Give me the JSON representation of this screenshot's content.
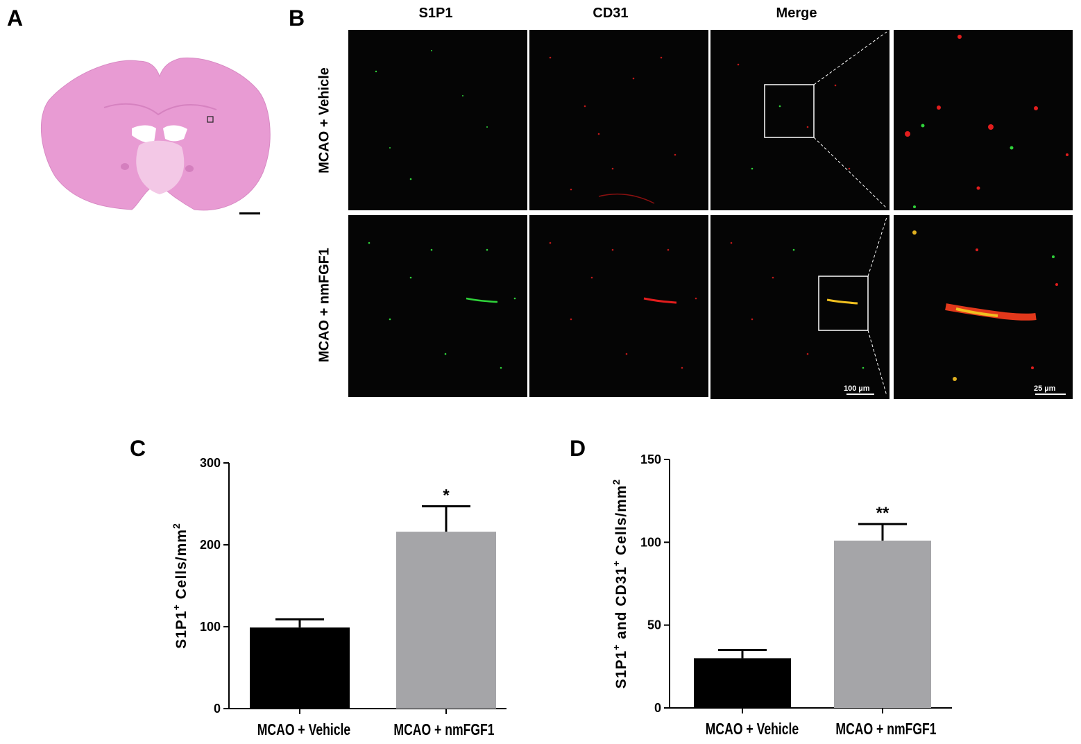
{
  "panels": {
    "a": {
      "letter": "A"
    },
    "b": {
      "letter": "B",
      "columns": [
        "S1P1",
        "CD31",
        "Merge"
      ],
      "rows": [
        "MCAO + Vehicle",
        "MCAO + nmFGF1"
      ],
      "scale_main": "100 µm",
      "scale_zoom": "25 µm"
    },
    "c": {
      "letter": "C"
    },
    "d": {
      "letter": "D"
    }
  },
  "colors": {
    "vehicle_bar": "#000000",
    "nmfgf1_bar": "#a5a5a8",
    "he_stain": "#e79ad2",
    "s1p1_signal": "#2fd33a",
    "cd31_signal": "#e21d1d",
    "merge_signal": "#f0c020"
  },
  "chart_data": [
    {
      "type": "bar",
      "panel": "C",
      "categories": [
        "MCAO + Vehicle",
        "MCAO + nmFGF1"
      ],
      "values": [
        99,
        216
      ],
      "errors": [
        10,
        31
      ],
      "significance": [
        "",
        "*"
      ],
      "ylabel_main": "S1P1",
      "ylabel_sup1": "+",
      "ylabel_rest": " Cells/mm",
      "ylabel_sup2": "2",
      "ylim": [
        0,
        300
      ],
      "yticks": [
        "0",
        "100",
        "200",
        "300"
      ],
      "ytick_values": [
        0,
        100,
        200,
        300
      ]
    },
    {
      "type": "bar",
      "panel": "D",
      "categories": [
        "MCAO + Vehicle",
        "MCAO + nmFGF1"
      ],
      "values": [
        30,
        101
      ],
      "errors": [
        5,
        10
      ],
      "significance": [
        "",
        "**"
      ],
      "ylabel_main": "S1P1",
      "ylabel_sup1": "+",
      "ylabel_mid": " and CD31",
      "ylabel_sup2": "+",
      "ylabel_rest": " Cells/mm",
      "ylabel_sup3": "2",
      "ylim": [
        0,
        150
      ],
      "yticks": [
        "0",
        "50",
        "100",
        "150"
      ],
      "ytick_values": [
        0,
        50,
        100,
        150
      ]
    }
  ]
}
